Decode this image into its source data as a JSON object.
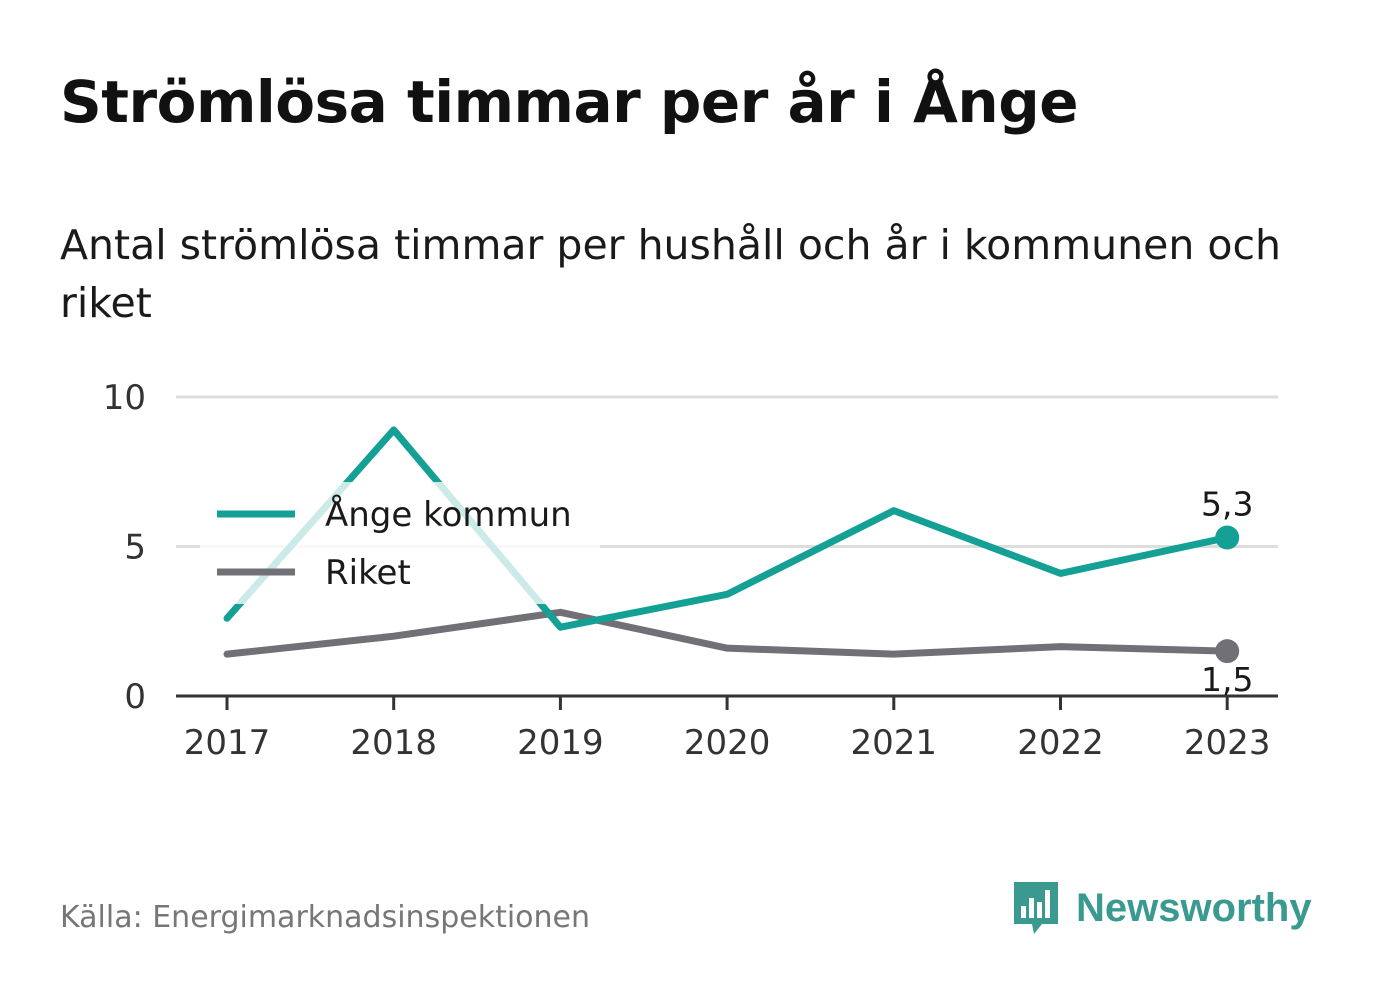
{
  "title": "Strömlösa timmar per år i Ånge",
  "subtitle": "Antal strömlösa timmar per hushåll och år i kommunen och riket",
  "source": "Källa: Energimarknadsinspektionen",
  "brand": {
    "name": "Newsworthy",
    "icon": "newsworthy-logo-icon"
  },
  "colors": {
    "ange": "#14a095",
    "riket": "#717076",
    "grid": "#dddddd",
    "axis": "#333333"
  },
  "chart_data": {
    "type": "line",
    "title": "Strömlösa timmar per år i Ånge",
    "x": [
      2017,
      2018,
      2019,
      2020,
      2021,
      2022,
      2023
    ],
    "xticks": [
      "2017",
      "2018",
      "2019",
      "2020",
      "2021",
      "2022",
      "2023"
    ],
    "ylim": [
      0,
      10
    ],
    "yticks": [
      "0",
      "5",
      "10"
    ],
    "grid": "horizontal",
    "legend_position": "upper-left",
    "series": [
      {
        "name": "Ånge kommun",
        "color": "#14a095",
        "values": [
          2.6,
          8.9,
          2.3,
          3.4,
          6.2,
          4.1,
          5.3
        ],
        "end_label": "5,3"
      },
      {
        "name": "Riket",
        "color": "#717076",
        "values": [
          1.4,
          2.0,
          2.8,
          1.6,
          1.4,
          1.65,
          1.5
        ],
        "end_label": "1,5"
      }
    ]
  }
}
